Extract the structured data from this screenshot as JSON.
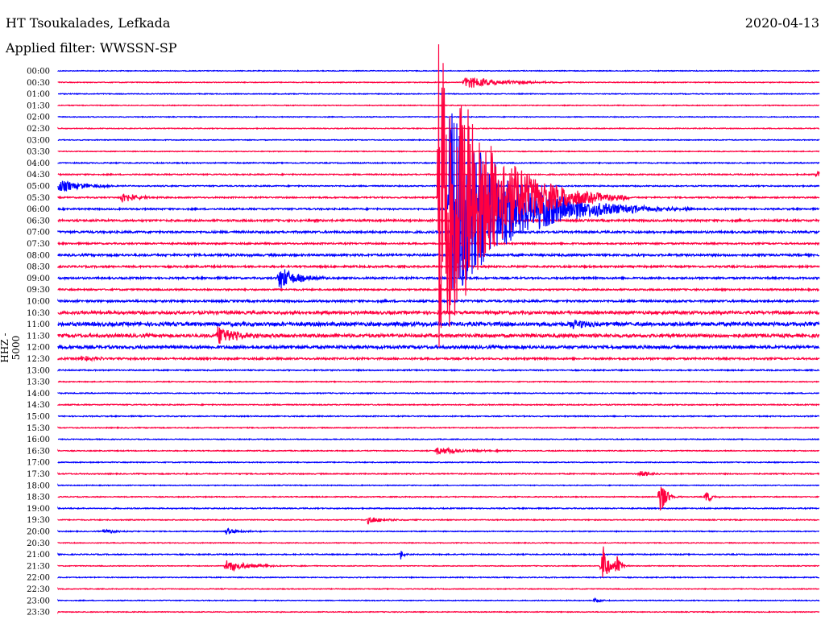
{
  "header": {
    "station": "HT Tsoukalades, Lefkada",
    "filter": "Applied filter: WWSSN-SP",
    "date": "2020-04-13"
  },
  "chart_data": {
    "type": "line",
    "title": "HT Tsoukalades, Lefkada",
    "ylabel": "HHZ - 5000",
    "row_duration_minutes": 30,
    "colors": [
      "#0000ff",
      "#ff0040"
    ],
    "rows": [
      "00:00",
      "00:30",
      "01:00",
      "01:30",
      "02:00",
      "02:30",
      "03:00",
      "03:30",
      "04:00",
      "04:30",
      "05:00",
      "05:30",
      "06:00",
      "06:30",
      "07:00",
      "07:30",
      "08:00",
      "08:30",
      "09:00",
      "09:30",
      "10:00",
      "10:30",
      "11:00",
      "11:30",
      "12:00",
      "12:30",
      "13:00",
      "13:30",
      "14:00",
      "14:30",
      "15:00",
      "15:30",
      "16:00",
      "16:30",
      "17:00",
      "17:30",
      "18:00",
      "18:30",
      "19:00",
      "19:30",
      "20:00",
      "20:30",
      "21:00",
      "21:30",
      "22:00",
      "22:30",
      "23:00",
      "23:30"
    ],
    "noise_level": [
      0.6,
      0.6,
      0.6,
      0.6,
      0.6,
      0.6,
      0.6,
      0.6,
      0.8,
      0.9,
      0.9,
      1.0,
      1.2,
      1.5,
      1.5,
      1.2,
      1.6,
      1.4,
      1.4,
      1.2,
      1.5,
      2.2,
      2.8,
      2.4,
      2.2,
      1.4,
      0.9,
      0.7,
      0.7,
      0.8,
      0.8,
      0.7,
      0.6,
      0.7,
      0.7,
      0.8,
      0.6,
      0.7,
      0.8,
      0.7,
      0.7,
      0.6,
      0.8,
      0.6,
      0.7,
      0.6,
      0.6,
      0.6
    ],
    "events": [
      {
        "row": 11,
        "minute": 15.0,
        "amplitude": 240,
        "duration": 2.5
      },
      {
        "row": 12,
        "minute": 15.4,
        "amplitude": 130,
        "duration": 3.2
      },
      {
        "row": 1,
        "minute": 16.0,
        "amplitude": 8,
        "duration": 2.0
      },
      {
        "row": 9,
        "minute": 29.9,
        "amplitude": 6,
        "duration": 0.3
      },
      {
        "row": 10,
        "minute": 0.0,
        "amplitude": 8,
        "duration": 1.5
      },
      {
        "row": 11,
        "minute": 2.5,
        "amplitude": 8,
        "duration": 0.8
      },
      {
        "row": 18,
        "minute": 8.7,
        "amplitude": 15,
        "duration": 1.0
      },
      {
        "row": 22,
        "minute": 20.2,
        "amplitude": 6,
        "duration": 1.0
      },
      {
        "row": 23,
        "minute": 6.3,
        "amplitude": 15,
        "duration": 0.9
      },
      {
        "row": 25,
        "minute": 0.9,
        "amplitude": 4,
        "duration": 0.8
      },
      {
        "row": 33,
        "minute": 14.9,
        "amplitude": 5,
        "duration": 1.5
      },
      {
        "row": 35,
        "minute": 22.9,
        "amplitude": 6,
        "duration": 0.5
      },
      {
        "row": 37,
        "minute": 23.7,
        "amplitude": 30,
        "duration": 0.3
      },
      {
        "row": 37,
        "minute": 25.5,
        "amplitude": 10,
        "duration": 0.3
      },
      {
        "row": 39,
        "minute": 12.2,
        "amplitude": 5,
        "duration": 0.8
      },
      {
        "row": 40,
        "minute": 1.8,
        "amplitude": 4,
        "duration": 0.6
      },
      {
        "row": 40,
        "minute": 6.6,
        "amplitude": 4,
        "duration": 0.8
      },
      {
        "row": 42,
        "minute": 13.5,
        "amplitude": 7,
        "duration": 0.15
      },
      {
        "row": 43,
        "minute": 6.6,
        "amplitude": 8,
        "duration": 1.2
      },
      {
        "row": 43,
        "minute": 21.4,
        "amplitude": 40,
        "duration": 0.3
      },
      {
        "row": 43,
        "minute": 22.0,
        "amplitude": 18,
        "duration": 0.2
      },
      {
        "row": 46,
        "minute": 21.1,
        "amplitude": 3,
        "duration": 0.4
      }
    ]
  }
}
